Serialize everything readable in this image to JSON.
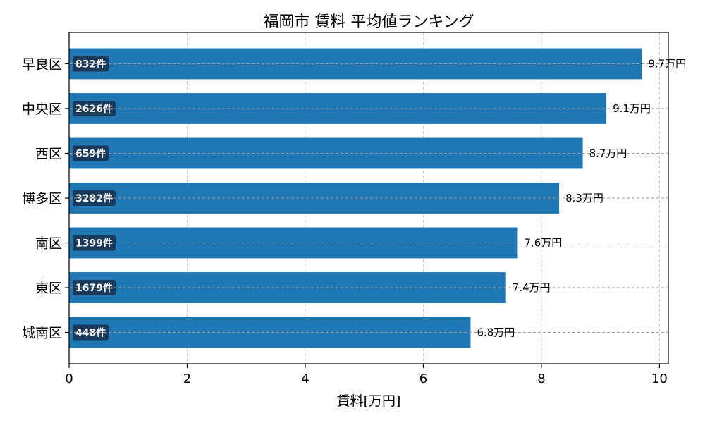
{
  "chart_data": {
    "type": "bar",
    "orientation": "horizontal",
    "title": "福岡市 賃料 平均値ランキング",
    "xlabel": "賃料[万円]",
    "ylabel": "",
    "xlim": [
      0,
      10.15
    ],
    "xticks": [
      "0",
      "2",
      "4",
      "6",
      "8",
      "10"
    ],
    "grid": true,
    "bar_color": "#1f77b4",
    "count_badge_color": "#1a3a5c",
    "categories": [
      "早良区",
      "中央区",
      "西区",
      "博多区",
      "南区",
      "東区",
      "城南区"
    ],
    "values": [
      9.7,
      9.1,
      8.7,
      8.3,
      7.6,
      7.4,
      6.8
    ],
    "value_labels": [
      "9.7万円",
      "9.1万円",
      "8.7万円",
      "8.3万円",
      "7.6万円",
      "7.4万円",
      "6.8万円"
    ],
    "count_labels": [
      "832件",
      "2626件",
      "659件",
      "3282件",
      "1399件",
      "1679件",
      "448件"
    ]
  }
}
